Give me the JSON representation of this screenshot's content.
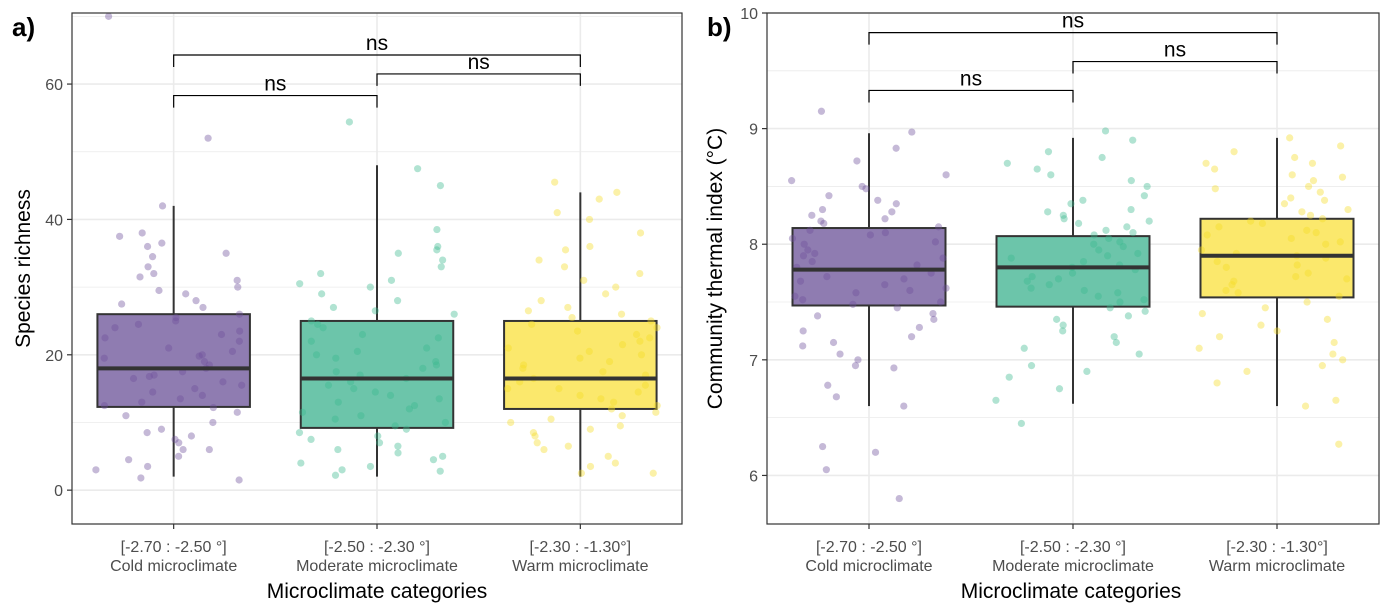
{
  "chart_data": [
    {
      "panel_label": "a)",
      "type": "box",
      "xlabel": "Microclimate categories",
      "ylabel": "Species richness",
      "categories": [
        {
          "range": "[-2.70 : -2.50 °]",
          "name": "Cold microclimate"
        },
        {
          "range": "[-2.50 : -2.30 °]",
          "name": "Moderate microclimate"
        },
        {
          "range": "[-2.30 : -1.30°]",
          "name": "Warm microclimate"
        }
      ],
      "ylim": [
        -5,
        70.5
      ],
      "yticks": [
        0,
        20,
        40,
        60
      ],
      "grid": true,
      "boxes": [
        {
          "min": 2,
          "q1": 12.3,
          "median": 18,
          "q3": 26,
          "max": 42
        },
        {
          "min": 2,
          "q1": 9.2,
          "median": 16.5,
          "q3": 25,
          "max": 48
        },
        {
          "min": 2,
          "q1": 12,
          "median": 16.5,
          "q3": 25,
          "max": 44
        }
      ],
      "outliers": [
        [
          52,
          70
        ],
        [
          54.4
        ],
        []
      ],
      "brackets": [
        {
          "from": 0,
          "to": 1,
          "y": 58.3,
          "label": "ns"
        },
        {
          "from": 1,
          "to": 2,
          "y": 61.5,
          "label": "ns"
        },
        {
          "from": 0,
          "to": 2,
          "y": 64.3,
          "label": "ns"
        }
      ],
      "jitter": [
        {
          "category": 0,
          "values": [
            3,
            1.5,
            1.8,
            4.5,
            6,
            7,
            8.5,
            10,
            12.2,
            13.5,
            14,
            15,
            16,
            16.5,
            17,
            18,
            19,
            19.5,
            20,
            21,
            22,
            23,
            24,
            25,
            26,
            27,
            28,
            29,
            30,
            31,
            32,
            33,
            35,
            36,
            37.5,
            38,
            42,
            13,
            15.5,
            17.5,
            18.5,
            20.5,
            22.5,
            24.5,
            6,
            7.5,
            9,
            11,
            11.5,
            12.5,
            14.5,
            16.8,
            19.8,
            23.5,
            25.5,
            27.5,
            29.5,
            31.5,
            34.5,
            36.5,
            3.5,
            5,
            8
          ]
        },
        {
          "category": 1,
          "values": [
            2.2,
            2.8,
            3.5,
            4.5,
            5.5,
            6.5,
            7,
            8,
            9,
            10,
            11,
            12,
            13,
            14,
            15,
            16,
            17,
            18,
            19,
            20,
            21,
            22,
            23,
            24,
            25,
            26,
            27,
            28,
            29,
            30,
            31,
            32,
            34,
            35.5,
            36,
            38.5,
            45,
            47.5,
            3,
            4,
            6,
            7.5,
            8.5,
            9.5,
            10.5,
            12.5,
            14.5,
            16.5,
            17.5,
            18.5,
            19.5,
            20.5,
            22.5,
            24.5,
            26.5,
            30.5,
            33,
            35,
            5,
            11.5,
            13.5,
            15.5
          ]
        },
        {
          "category": 2,
          "values": [
            2.5,
            3.5,
            5,
            6,
            7,
            8,
            9,
            10,
            11,
            12,
            13,
            14,
            15,
            16,
            17,
            18,
            19,
            20,
            21,
            22,
            23,
            24,
            25,
            26,
            27,
            28,
            30,
            32,
            33,
            34,
            35.5,
            38,
            40,
            41,
            43,
            44,
            45.5,
            4,
            6.5,
            8.5,
            10.5,
            11.5,
            12.5,
            13.5,
            14.5,
            15.5,
            16.5,
            17.5,
            18.5,
            19.5,
            20.5,
            21.5,
            22.5,
            23.5,
            24.5,
            25.5,
            26.5,
            29,
            31,
            36,
            2.5,
            9.5,
            15
          ]
        }
      ]
    },
    {
      "panel_label": "b)",
      "type": "box",
      "xlabel": "Microclimate categories",
      "ylabel": "Community thermal index (°C)",
      "categories": [
        {
          "range": "[-2.70 : -2.50 °]",
          "name": "Cold microclimate"
        },
        {
          "range": "[-2.50 : -2.30 °]",
          "name": "Moderate microclimate"
        },
        {
          "range": "[-2.30 : -1.30°]",
          "name": "Warm microclimate"
        }
      ],
      "ylim": [
        5.58,
        10
      ],
      "yticks": [
        6,
        7,
        8,
        9,
        10
      ],
      "grid": true,
      "boxes": [
        {
          "min": 6.6,
          "q1": 7.47,
          "median": 7.78,
          "q3": 8.14,
          "max": 8.96
        },
        {
          "min": 6.62,
          "q1": 7.46,
          "median": 7.8,
          "q3": 8.07,
          "max": 8.92
        },
        {
          "min": 6.6,
          "q1": 7.54,
          "median": 7.9,
          "q3": 8.22,
          "max": 8.92
        }
      ],
      "outliers": [
        [
          6.05,
          5.8,
          9.15
        ],
        [
          6.45
        ],
        [
          6.27
        ]
      ],
      "brackets": [
        {
          "from": 0,
          "to": 1,
          "y": 9.33,
          "label": "ns"
        },
        {
          "from": 1,
          "to": 2,
          "y": 9.58,
          "label": "ns"
        },
        {
          "from": 0,
          "to": 2,
          "y": 9.83,
          "label": "ns"
        }
      ],
      "jitter": [
        {
          "category": 0,
          "values": [
            6.2,
            6.25,
            6.6,
            6.68,
            6.78,
            6.93,
            7.0,
            7.12,
            7.2,
            7.28,
            7.35,
            7.4,
            7.45,
            7.5,
            7.55,
            7.6,
            7.65,
            7.7,
            7.75,
            7.8,
            7.85,
            7.9,
            7.95,
            8.0,
            8.05,
            8.1,
            8.15,
            8.2,
            8.25,
            8.3,
            8.35,
            8.42,
            8.5,
            8.6,
            8.72,
            8.83,
            8.97,
            7.48,
            7.58,
            7.68,
            7.72,
            7.82,
            7.88,
            7.92,
            8.02,
            8.08,
            8.12,
            8.18,
            8.22,
            7.38,
            7.25,
            7.15,
            8.28,
            8.38,
            8.48,
            7.62,
            7.52,
            6.95,
            7.05,
            8.55
          ]
        },
        {
          "category": 1,
          "values": [
            6.65,
            6.75,
            6.85,
            6.95,
            7.05,
            7.15,
            7.2,
            7.3,
            7.38,
            7.42,
            7.5,
            7.55,
            7.6,
            7.65,
            7.7,
            7.75,
            7.8,
            7.85,
            7.9,
            7.95,
            8.0,
            8.05,
            8.1,
            8.15,
            8.2,
            8.25,
            8.35,
            8.42,
            8.5,
            8.6,
            8.7,
            8.8,
            8.9,
            8.98,
            7.45,
            7.52,
            7.58,
            7.68,
            7.72,
            7.82,
            7.88,
            7.92,
            8.02,
            8.08,
            8.12,
            8.18,
            8.22,
            8.3,
            8.38,
            8.55,
            8.65,
            8.75,
            7.25,
            7.35,
            7.1,
            6.9,
            7.62,
            7.78,
            7.98,
            8.28
          ]
        },
        {
          "category": 2,
          "values": [
            6.6,
            6.65,
            6.8,
            6.9,
            7.0,
            7.1,
            7.2,
            7.3,
            7.4,
            7.5,
            7.55,
            7.6,
            7.65,
            7.7,
            7.75,
            7.8,
            7.85,
            7.9,
            7.95,
            8.0,
            8.05,
            8.1,
            8.15,
            8.2,
            8.25,
            8.3,
            8.35,
            8.4,
            8.45,
            8.5,
            8.55,
            8.6,
            8.65,
            8.7,
            8.75,
            8.8,
            8.92,
            7.58,
            7.68,
            7.72,
            7.82,
            7.88,
            7.92,
            8.02,
            8.08,
            8.12,
            8.18,
            8.22,
            8.28,
            8.38,
            8.48,
            8.58,
            7.25,
            7.35,
            7.45,
            7.15,
            6.95,
            8.7,
            8.85,
            7.05
          ]
        }
      ]
    }
  ],
  "colors": {
    "cold_fill": "#8f7cb1",
    "moderate_fill": "#6cc5aa",
    "warm_fill": "#fbe86c",
    "cold_point": "#6d4f9a",
    "moderate_point": "#3bb98f",
    "warm_point": "#f5dc25",
    "grid": "#ebebeb",
    "axis_text": "#4d4d4d"
  }
}
